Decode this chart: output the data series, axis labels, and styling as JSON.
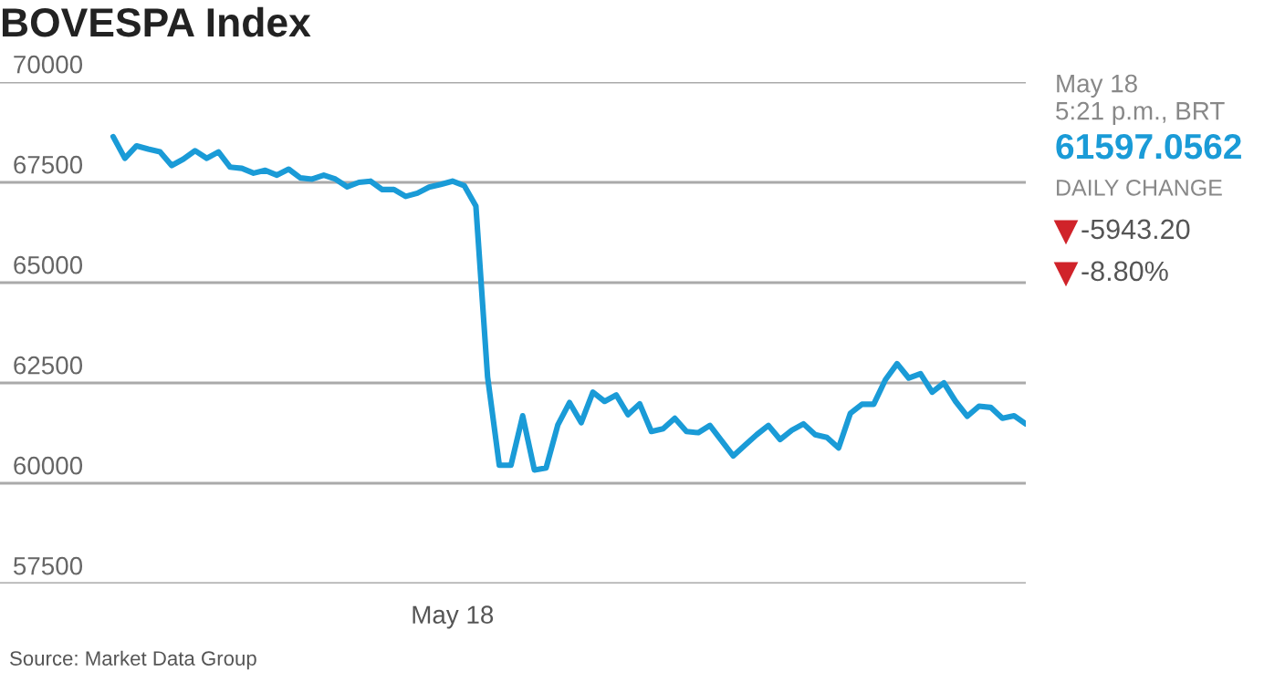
{
  "chart_data": {
    "type": "line",
    "title": "BOVESPA Index",
    "categories": [
      null,
      null,
      null,
      null,
      null,
      null,
      null,
      null,
      null,
      null,
      null,
      null,
      null,
      null,
      null,
      null,
      null,
      null,
      null,
      null,
      null,
      null,
      null,
      null,
      null,
      null,
      null,
      null,
      null,
      "May 18",
      null,
      null,
      null,
      null,
      null,
      null,
      null,
      null,
      null,
      null,
      null,
      null,
      null,
      null,
      null,
      null,
      null,
      null,
      null,
      null,
      null,
      null,
      null,
      null,
      null,
      null,
      null,
      null,
      null,
      null,
      null,
      null,
      null,
      null,
      null,
      null,
      null,
      null,
      null,
      null,
      null,
      null,
      null,
      null,
      null,
      null,
      null,
      null,
      null
    ],
    "series": [
      {
        "color": "#1a9bd7",
        "values": [
          68640,
          68100,
          68410,
          68330,
          68260,
          67920,
          68080,
          68290,
          68100,
          68260,
          67880,
          67850,
          67730,
          67800,
          67680,
          67830,
          67610,
          67580,
          67680,
          67580,
          67390,
          67500,
          67530,
          67320,
          67320,
          67150,
          67230,
          67380,
          67450,
          67530,
          67420,
          66910,
          62650,
          60450,
          60450,
          61680,
          60330,
          60380,
          61450,
          62010,
          61510,
          62270,
          62040,
          62200,
          61710,
          61980,
          61290,
          61360,
          61620,
          61290,
          61260,
          61440,
          61060,
          60680,
          60950,
          61210,
          61440,
          61090,
          61320,
          61480,
          61210,
          61140,
          60880,
          61740,
          61970,
          61970,
          62580,
          62980,
          62620,
          62730,
          62270,
          62500,
          62040,
          61670,
          61920,
          61890,
          61620,
          61680,
          61480
        ]
      }
    ],
    "ylim": [
      57500,
      70000
    ],
    "yticks": [
      57500,
      60000,
      62500,
      65000,
      67500,
      70000
    ],
    "grid": "y",
    "annotations": [
      "May 18",
      "5:21 p.m., BRT",
      "61597.0562",
      "DAILY CHANGE",
      "-5943.20",
      "-8.80%",
      "Source: Market Data Group"
    ]
  }
}
